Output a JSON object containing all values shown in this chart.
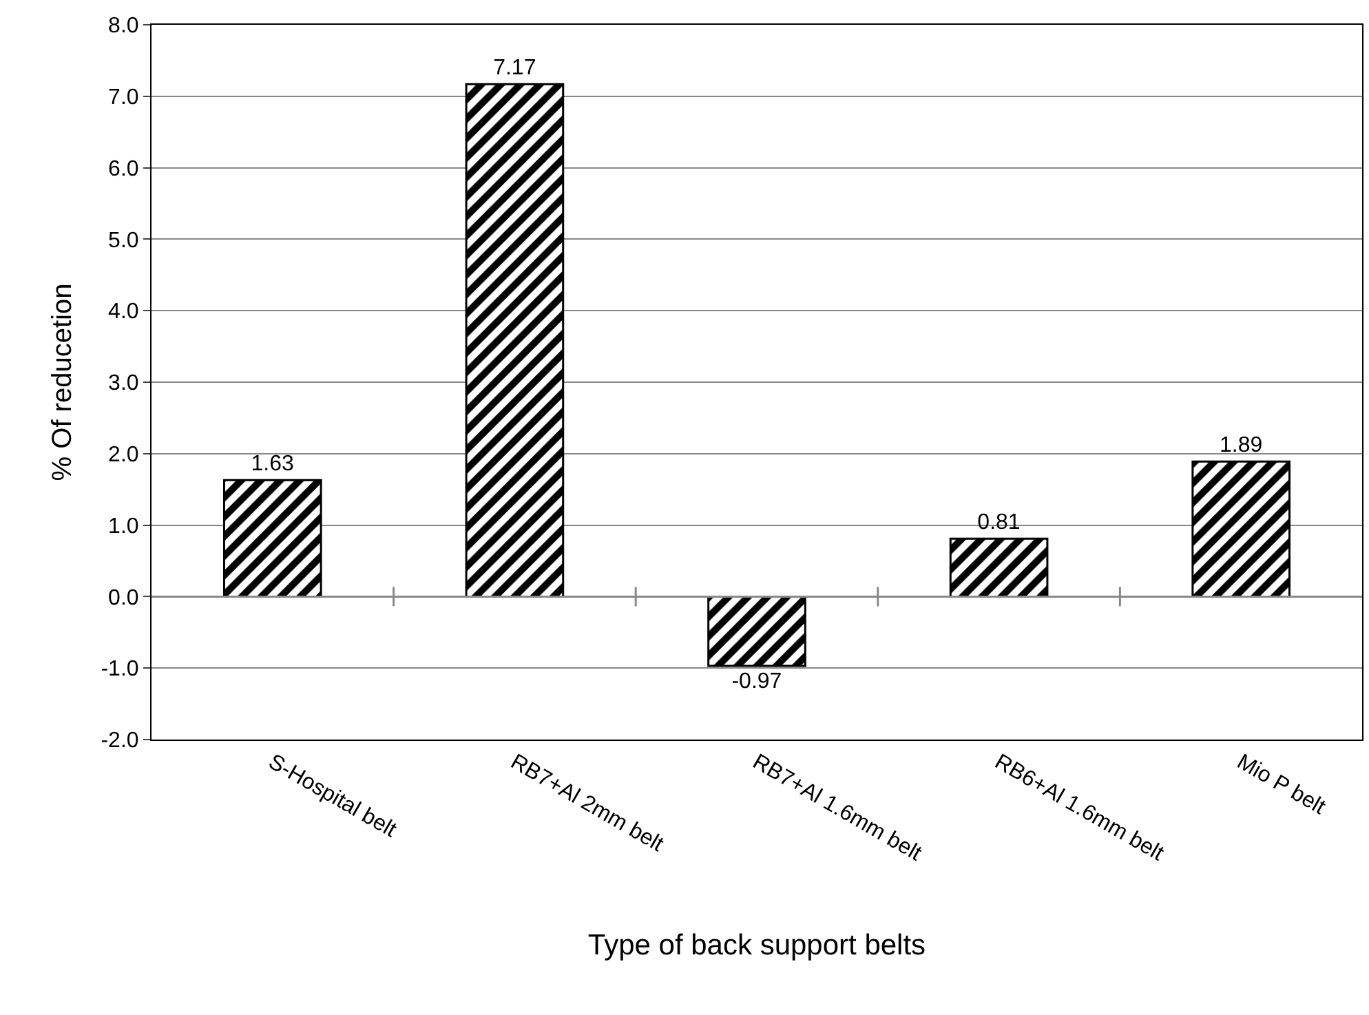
{
  "chart_data": {
    "type": "bar",
    "xlabel": "Type of back support belts",
    "ylabel": "% Of reducetion",
    "categories": [
      "S-Hospital belt",
      "RB7+Al 2mm belt",
      "RB7+Al 1.6mm belt",
      "RB6+Al 1.6mm belt",
      "Mio P belt"
    ],
    "values": [
      1.63,
      7.17,
      -0.97,
      0.81,
      1.89
    ],
    "color": "#000000",
    "value_labels": [
      "1.63",
      "7.17",
      "-0.97",
      "0.81",
      "1.89"
    ],
    "ylim": [
      -2,
      8
    ],
    "yticks": [
      {
        "value": -2,
        "label": "-2.0"
      },
      {
        "value": -1,
        "label": "-1.0"
      },
      {
        "value": 0,
        "label": "0.0"
      },
      {
        "value": 1,
        "label": "1.0"
      },
      {
        "value": 2,
        "label": "2.0"
      },
      {
        "value": 3,
        "label": "3.0"
      },
      {
        "value": 4,
        "label": "4.0"
      },
      {
        "value": 5,
        "label": "5.0"
      },
      {
        "value": 6,
        "label": "6.0"
      },
      {
        "value": 7,
        "label": "7.0"
      },
      {
        "value": 8,
        "label": "8.0"
      }
    ],
    "grid": "y"
  }
}
